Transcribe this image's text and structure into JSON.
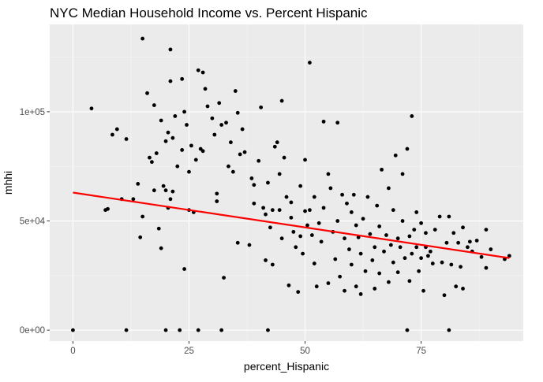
{
  "chart_data": {
    "type": "scatter",
    "title": "NYC Median Household Income vs. Percent Hispanic",
    "xlabel": "percent_Hispanic",
    "ylabel": "mhhi",
    "xlim": [
      -5,
      97
    ],
    "ylim": [
      -5000,
      140000
    ],
    "x_ticks": [
      0,
      25,
      50,
      75
    ],
    "x_tick_labels": [
      "0",
      "25",
      "50",
      "75"
    ],
    "y_ticks": [
      0,
      50000,
      100000
    ],
    "y_tick_labels": [
      "0e+00",
      "5e+04",
      "1e+05"
    ],
    "grid": true,
    "legend": "none",
    "colors": {
      "panel_background": "#ebebeb",
      "grid_major": "#ffffff",
      "grid_minor": "#f5f5f5",
      "points": "#000000",
      "trend_line": "#ff0000"
    },
    "trend_line": {
      "type": "linear",
      "x": [
        0,
        94
      ],
      "y": [
        63000,
        33000
      ]
    },
    "series": [
      {
        "points": [
          [
            0,
            0
          ],
          [
            4,
            101500
          ],
          [
            7,
            55000
          ],
          [
            7.5,
            55500
          ],
          [
            8.5,
            89500
          ],
          [
            9.5,
            92000
          ],
          [
            10.5,
            60000
          ],
          [
            11.5,
            0
          ],
          [
            11.5,
            87500
          ],
          [
            13,
            60000
          ],
          [
            14,
            67000
          ],
          [
            14.5,
            42500
          ],
          [
            15,
            133500
          ],
          [
            15,
            52000
          ],
          [
            16,
            108500
          ],
          [
            16.5,
            79000
          ],
          [
            17,
            77000
          ],
          [
            17.5,
            64000
          ],
          [
            17.5,
            103000
          ],
          [
            18,
            81000
          ],
          [
            18.5,
            46500
          ],
          [
            19,
            96000
          ],
          [
            19,
            37500
          ],
          [
            19.5,
            66000
          ],
          [
            20,
            0
          ],
          [
            20,
            64000
          ],
          [
            20,
            86500
          ],
          [
            20.5,
            90500
          ],
          [
            20.5,
            56000
          ],
          [
            21,
            128500
          ],
          [
            21,
            114000
          ],
          [
            21,
            60000
          ],
          [
            21.5,
            88000
          ],
          [
            21.5,
            63500
          ],
          [
            22,
            98000
          ],
          [
            22.5,
            75000
          ],
          [
            23,
            0
          ],
          [
            23.5,
            115000
          ],
          [
            23.5,
            82500
          ],
          [
            24,
            100000
          ],
          [
            24,
            28000
          ],
          [
            24.5,
            94000
          ],
          [
            25,
            72500
          ],
          [
            25,
            55000
          ],
          [
            25.5,
            84500
          ],
          [
            26,
            54000
          ],
          [
            26.5,
            78000
          ],
          [
            27,
            119000
          ],
          [
            27,
            0
          ],
          [
            27.5,
            83000
          ],
          [
            28,
            118000
          ],
          [
            28,
            82000
          ],
          [
            28.5,
            110500
          ],
          [
            29,
            102500
          ],
          [
            30,
            97000
          ],
          [
            30.5,
            89500
          ],
          [
            31,
            62500
          ],
          [
            31.5,
            104000
          ],
          [
            31,
            59000
          ],
          [
            32,
            94000
          ],
          [
            32,
            0
          ],
          [
            32.5,
            24000
          ],
          [
            33,
            95000
          ],
          [
            33.5,
            75000
          ],
          [
            34,
            86000
          ],
          [
            34.5,
            72500
          ],
          [
            35,
            109500
          ],
          [
            35.5,
            40000
          ],
          [
            35.5,
            99500
          ],
          [
            36,
            80500
          ],
          [
            36.5,
            92000
          ],
          [
            37,
            81500
          ],
          [
            38,
            39000
          ],
          [
            38.5,
            69500
          ],
          [
            39,
            66500
          ],
          [
            39,
            58000
          ],
          [
            40,
            77500
          ],
          [
            40.5,
            102000
          ],
          [
            41,
            56000
          ],
          [
            41.5,
            53000
          ],
          [
            41.5,
            32000
          ],
          [
            42,
            0
          ],
          [
            42,
            67500
          ],
          [
            42.5,
            47000
          ],
          [
            43,
            55000
          ],
          [
            43,
            30000
          ],
          [
            43.5,
            84000
          ],
          [
            44,
            86000
          ],
          [
            44.5,
            71500
          ],
          [
            44.5,
            55000
          ],
          [
            45,
            105000
          ],
          [
            45,
            42000
          ],
          [
            45.5,
            79000
          ],
          [
            46,
            61000
          ],
          [
            46.5,
            20500
          ],
          [
            47,
            58500
          ],
          [
            47,
            51500
          ],
          [
            47.5,
            45000
          ],
          [
            48,
            38000
          ],
          [
            48.5,
            17500
          ],
          [
            49,
            66000
          ],
          [
            49,
            43000
          ],
          [
            49.5,
            35000
          ],
          [
            50,
            54500
          ],
          [
            50,
            78000
          ],
          [
            50.5,
            48000
          ],
          [
            51,
            122500
          ],
          [
            51,
            55000
          ],
          [
            51.5,
            43500
          ],
          [
            52,
            61000
          ],
          [
            52,
            30500
          ],
          [
            52.5,
            20000
          ],
          [
            53,
            49000
          ],
          [
            53.5,
            40500
          ],
          [
            54,
            95500
          ],
          [
            54,
            56000
          ],
          [
            55,
            71500
          ],
          [
            55,
            21500
          ],
          [
            55.5,
            65000
          ],
          [
            56,
            45000
          ],
          [
            56.5,
            32500
          ],
          [
            57,
            95000
          ],
          [
            57,
            50000
          ],
          [
            57.5,
            24500
          ],
          [
            58,
            62000
          ],
          [
            58.5,
            42000
          ],
          [
            58.5,
            18000
          ],
          [
            59,
            58000
          ],
          [
            59.5,
            37000
          ],
          [
            60,
            54000
          ],
          [
            60,
            30000
          ],
          [
            60.5,
            62000
          ],
          [
            61,
            48000
          ],
          [
            61,
            20000
          ],
          [
            61.5,
            42500
          ],
          [
            62,
            35000
          ],
          [
            62,
            16500
          ],
          [
            62.5,
            51000
          ],
          [
            63,
            27000
          ],
          [
            63.5,
            61000
          ],
          [
            64,
            44000
          ],
          [
            64.5,
            32000
          ],
          [
            65,
            38000
          ],
          [
            65,
            19000
          ],
          [
            65.5,
            57000
          ],
          [
            66,
            47500
          ],
          [
            66,
            26000
          ],
          [
            66.5,
            73500
          ],
          [
            67,
            36000
          ],
          [
            67.5,
            43500
          ],
          [
            68,
            65000
          ],
          [
            68,
            22000
          ],
          [
            68.5,
            39000
          ],
          [
            69,
            55000
          ],
          [
            69,
            31000
          ],
          [
            69.5,
            80000
          ],
          [
            70,
            42000
          ],
          [
            70,
            26500
          ],
          [
            70.5,
            38000
          ],
          [
            71,
            71500
          ],
          [
            71,
            50000
          ],
          [
            71.5,
            33000
          ],
          [
            72,
            83000
          ],
          [
            72,
            0
          ],
          [
            72.5,
            43000
          ],
          [
            72.5,
            22500
          ],
          [
            73,
            98000
          ],
          [
            73,
            35000
          ],
          [
            73.5,
            46000
          ],
          [
            74,
            54000
          ],
          [
            74,
            38000
          ],
          [
            74.5,
            27000
          ],
          [
            75,
            49000
          ],
          [
            75,
            33000
          ],
          [
            75.5,
            18000
          ],
          [
            76,
            44500
          ],
          [
            76,
            38000
          ],
          [
            76.5,
            34000
          ],
          [
            77,
            36000
          ],
          [
            77.5,
            30500
          ],
          [
            78,
            46000
          ],
          [
            79,
            52000
          ],
          [
            79.5,
            31000
          ],
          [
            80,
            16000
          ],
          [
            80.5,
            40000
          ],
          [
            81,
            0
          ],
          [
            81,
            52000
          ],
          [
            81.5,
            30000
          ],
          [
            82,
            44500
          ],
          [
            82.5,
            20000
          ],
          [
            83,
            40000
          ],
          [
            83.5,
            29000
          ],
          [
            84,
            47000
          ],
          [
            84,
            19000
          ],
          [
            85,
            38000
          ],
          [
            85.5,
            40500
          ],
          [
            86,
            36000
          ],
          [
            87,
            41000
          ],
          [
            88,
            33500
          ],
          [
            89,
            46000
          ],
          [
            89,
            28500
          ],
          [
            90,
            37000
          ],
          [
            93,
            32500
          ],
          [
            94,
            34000
          ]
        ]
      }
    ]
  }
}
